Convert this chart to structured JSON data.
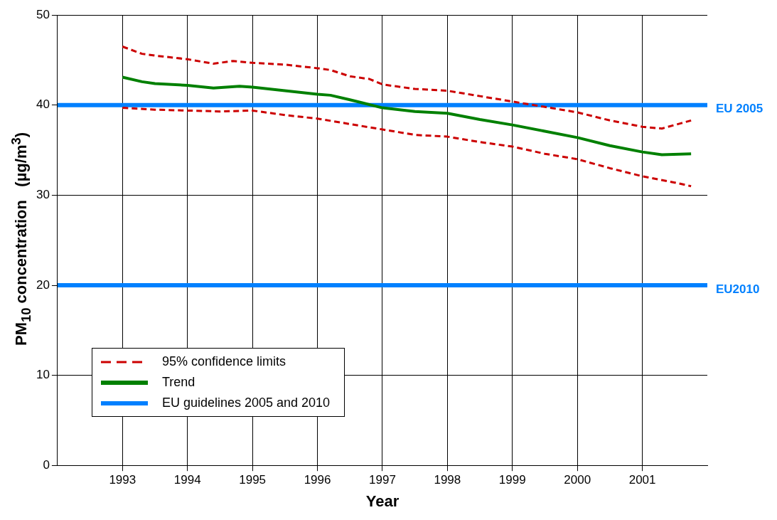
{
  "chart_data": {
    "type": "line",
    "xlabel": "Year",
    "ylabel": "PM$_{10}$ concentration   (µg/m$^{3}$)",
    "xlim": [
      1992,
      2002
    ],
    "xticks": [
      1993,
      1994,
      1995,
      1996,
      1997,
      1998,
      1999,
      2000,
      2001
    ],
    "ylim": [
      0,
      50
    ],
    "yticks": [
      0,
      10,
      20,
      30,
      40,
      50
    ],
    "grid": true,
    "legend": "bottom left",
    "marker": "none",
    "series": [
      {
        "name": "95% confidence limits",
        "color": "#cc0000",
        "line_style": "dashed",
        "x": [
          1993.0,
          1993.3,
          1993.5,
          1994.0,
          1994.4,
          1994.7,
          1995.0,
          1995.5,
          1996.0,
          1996.2,
          1996.5,
          1996.8,
          1997.0,
          1997.5,
          1998.0,
          1998.5,
          1999.0,
          1999.5,
          2000.0,
          2000.5,
          2001.0,
          2001.3,
          2001.6,
          2001.75
        ],
        "values": [
          46.5,
          45.7,
          45.5,
          45.1,
          44.6,
          44.9,
          44.7,
          44.5,
          44.1,
          43.9,
          43.2,
          42.9,
          42.3,
          41.8,
          41.6,
          41.0,
          40.4,
          39.8,
          39.2,
          38.3,
          37.6,
          37.4,
          38.0,
          38.3
        ]
      },
      {
        "color": "#cc0000",
        "line_style": "dashed",
        "x": [
          1993.0,
          1993.5,
          1994.0,
          1994.5,
          1995.0,
          1995.5,
          1996.0,
          1996.5,
          1997.0,
          1997.5,
          1998.0,
          1998.5,
          1999.0,
          1999.5,
          2000.0,
          2000.5,
          2001.0,
          2001.5,
          2001.75
        ],
        "values": [
          39.7,
          39.5,
          39.4,
          39.3,
          39.4,
          38.9,
          38.5,
          37.9,
          37.3,
          36.7,
          36.5,
          35.9,
          35.4,
          34.6,
          34.0,
          33.0,
          32.1,
          31.4,
          31.0
        ]
      },
      {
        "name": "Trend",
        "color": "#008000",
        "line_style": "solid",
        "x": [
          1993.0,
          1993.3,
          1993.5,
          1994.0,
          1994.4,
          1994.8,
          1995.0,
          1995.5,
          1996.0,
          1996.2,
          1996.5,
          1997.0,
          1997.5,
          1998.0,
          1998.5,
          1999.0,
          1999.5,
          2000.0,
          2000.5,
          2001.0,
          2001.3,
          2001.75
        ],
        "values": [
          43.1,
          42.6,
          42.4,
          42.2,
          41.9,
          42.1,
          42.0,
          41.6,
          41.2,
          41.1,
          40.6,
          39.7,
          39.3,
          39.1,
          38.4,
          37.8,
          37.1,
          36.4,
          35.5,
          34.8,
          34.5,
          34.6
        ]
      },
      {
        "name": "EU guidelines 2005 and 2010",
        "color": "#0080ff",
        "line_style": "solid",
        "x": [
          1992,
          2002
        ],
        "values": [
          40,
          40
        ]
      },
      {
        "color": "#0080ff",
        "line_style": "solid",
        "x": [
          1992,
          2002
        ],
        "values": [
          20,
          20
        ]
      }
    ],
    "annotations": [
      {
        "text": "EU 2005",
        "x": 2002,
        "y": 40
      },
      {
        "text": "EU2010",
        "x": 2002,
        "y": 20
      }
    ]
  }
}
